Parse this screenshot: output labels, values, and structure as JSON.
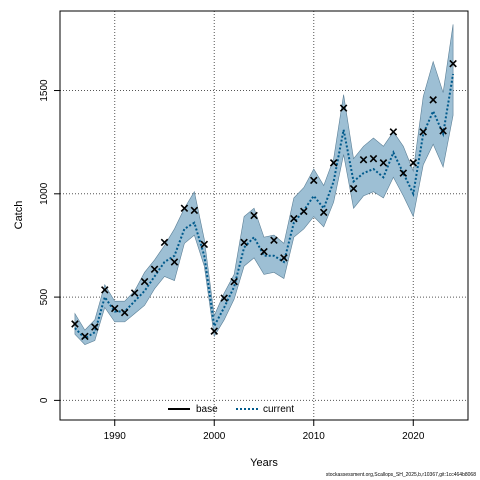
{
  "chart_data": {
    "type": "line",
    "xlabel": "Years",
    "ylabel": "Catch",
    "xlim": [
      1984.5,
      2025.5
    ],
    "ylim": [
      -95,
      1885
    ],
    "x_ticks": [
      1990,
      2000,
      2010,
      2020
    ],
    "y_ticks": [
      0,
      500,
      1000,
      1500
    ],
    "grid": true,
    "legend_position": "bottom-center",
    "footer": "stockassessment.org,Scallops_SH_2025,b,r10367,git:1cc464b8068",
    "series": [
      {
        "name": "base",
        "color": "#000000",
        "style": "solid",
        "x": [],
        "y": []
      },
      {
        "name": "current",
        "color": "#005a8c",
        "style": "dotted",
        "band_color": "#9dbfd4",
        "x": [
          1986,
          1987,
          1988,
          1989,
          1990,
          1991,
          1992,
          1993,
          1994,
          1995,
          1996,
          1997,
          1998,
          1999,
          2000,
          2001,
          2002,
          2003,
          2004,
          2005,
          2006,
          2007,
          2008,
          2009,
          2010,
          2011,
          2012,
          2013,
          2014,
          2015,
          2016,
          2017,
          2018,
          2019,
          2020,
          2021,
          2022,
          2023,
          2024
        ],
        "y": [
          350,
          300,
          330,
          500,
          430,
          430,
          480,
          530,
          600,
          670,
          700,
          830,
          860,
          700,
          360,
          450,
          550,
          740,
          790,
          700,
          700,
          670,
          860,
          920,
          990,
          930,
          1060,
          1310,
          1060,
          1100,
          1120,
          1080,
          1200,
          1100,
          1000,
          1290,
          1400,
          1290,
          1580
        ],
        "lower": [
          320,
          270,
          290,
          450,
          380,
          380,
          420,
          460,
          540,
          600,
          580,
          760,
          800,
          650,
          310,
          390,
          490,
          650,
          690,
          610,
          620,
          590,
          790,
          830,
          890,
          840,
          960,
          1190,
          930,
          990,
          1010,
          980,
          1080,
          990,
          890,
          1140,
          1240,
          1130,
          1380
        ],
        "upper": [
          420,
          340,
          390,
          560,
          480,
          480,
          530,
          620,
          680,
          750,
          830,
          930,
          1010,
          780,
          410,
          520,
          610,
          890,
          930,
          790,
          800,
          760,
          980,
          1030,
          1120,
          1040,
          1170,
          1480,
          1170,
          1230,
          1270,
          1230,
          1300,
          1230,
          1110,
          1470,
          1640,
          1490,
          1820
        ]
      }
    ],
    "observations": {
      "name": "observed",
      "marker": "x",
      "x": [
        1986,
        1987,
        1988,
        1989,
        1990,
        1991,
        1992,
        1993,
        1994,
        1995,
        1996,
        1997,
        1998,
        1999,
        2000,
        2001,
        2002,
        2003,
        2004,
        2005,
        2006,
        2007,
        2008,
        2009,
        2010,
        2011,
        2012,
        2013,
        2014,
        2015,
        2016,
        2017,
        2018,
        2019,
        2020,
        2021,
        2022,
        2023,
        2024
      ],
      "y": [
        370,
        310,
        355,
        535,
        445,
        425,
        520,
        575,
        635,
        765,
        670,
        930,
        920,
        755,
        335,
        495,
        575,
        765,
        895,
        720,
        775,
        690,
        880,
        915,
        1065,
        910,
        1150,
        1415,
        1025,
        1165,
        1170,
        1150,
        1300,
        1100,
        1150,
        1300,
        1455,
        1305,
        1630
      ]
    }
  }
}
